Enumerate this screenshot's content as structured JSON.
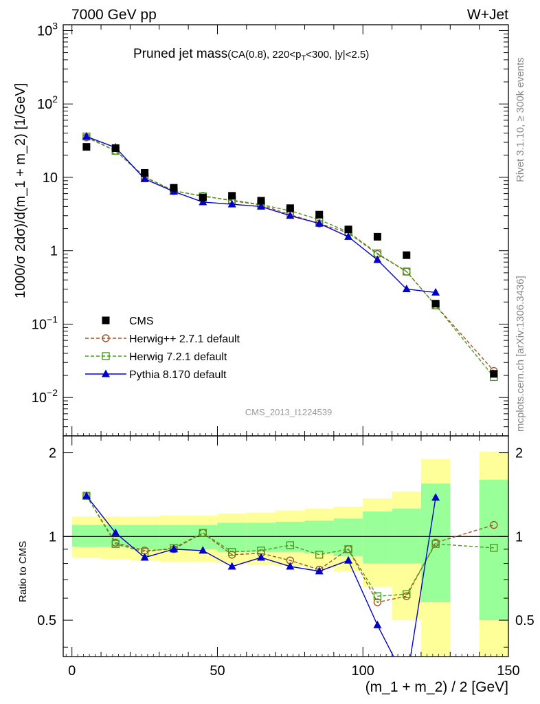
{
  "header": {
    "left": "7000 GeV pp",
    "right": "W+Jet"
  },
  "title_main": "Pruned jet mass",
  "title_sub_pre": "(CA(0.8), 220<p",
  "title_sub_subscript": "T",
  "title_sub_post": "<300, |y|<2.5)",
  "side_right_top": "Rivet 3.1.10, ≥ 300k events",
  "side_right_bottom": "mcplots.cern.ch [arXiv:1306.3436]",
  "watermark": "CMS_2013_I1224539",
  "chart_data": {
    "type": "scatter",
    "xlabel": "(m_1 + m_2) / 2 [GeV]",
    "ylabel": "1000/σ 2dσ)/d(m_1 + m_2) [1/GeV]",
    "ratio_ylabel": "Ratio to CMS",
    "xlim": [
      -3,
      150
    ],
    "ylim": [
      0.003,
      1200
    ],
    "yscale": "log",
    "ratio_ylim": [
      0.37,
      2.3
    ],
    "x_ticks": [
      0,
      50,
      100,
      150
    ],
    "y_tick_labels": [
      "10^-2",
      "10^-1",
      "1",
      "10",
      "10^2",
      "10^3"
    ],
    "ratio_tick_labels": [
      "0.5",
      "1",
      "2"
    ],
    "x": [
      5,
      15,
      25,
      35,
      45,
      55,
      65,
      75,
      85,
      95,
      105,
      115,
      125,
      145
    ],
    "bin_edges": [
      [
        0,
        10
      ],
      [
        10,
        20
      ],
      [
        20,
        30
      ],
      [
        30,
        40
      ],
      [
        40,
        50
      ],
      [
        50,
        60
      ],
      [
        60,
        70
      ],
      [
        70,
        80
      ],
      [
        80,
        90
      ],
      [
        90,
        100
      ],
      [
        100,
        110
      ],
      [
        110,
        120
      ],
      [
        120,
        130
      ],
      [
        140,
        150
      ]
    ],
    "series": [
      {
        "name": "CMS",
        "style": "data",
        "color": "#000000",
        "values": [
          26,
          25,
          11.5,
          7.2,
          5.3,
          5.6,
          4.8,
          3.8,
          3.1,
          1.95,
          1.55,
          0.87,
          0.19,
          0.021
        ]
      },
      {
        "name": "Herwig++ 2.7.1 default",
        "style": "circle-dashed",
        "color": "#a0522d",
        "values": [
          35,
          23,
          10.2,
          6.5,
          5.6,
          4.8,
          4.2,
          3.1,
          2.35,
          1.75,
          0.9,
          0.52,
          0.18,
          0.023
        ],
        "ratio": [
          1.4,
          0.95,
          0.89,
          0.9,
          1.03,
          0.86,
          0.87,
          0.82,
          0.76,
          0.9,
          0.58,
          0.61,
          0.95,
          1.1
        ]
      },
      {
        "name": "Herwig 7.2.1 default",
        "style": "square-dashed",
        "color": "#4a9a1e",
        "values": [
          36,
          23,
          10,
          6.6,
          5.5,
          4.9,
          4.25,
          3.5,
          2.65,
          1.8,
          0.92,
          0.52,
          0.18,
          0.019
        ],
        "ratio": [
          1.4,
          0.94,
          0.88,
          0.91,
          1.03,
          0.88,
          0.89,
          0.93,
          0.86,
          0.9,
          0.61,
          0.62,
          0.94,
          0.91
        ]
      },
      {
        "name": "Pythia 8.170 default",
        "style": "triangle-solid",
        "color": "#0000cc",
        "values": [
          36,
          25.5,
          9.5,
          6.4,
          4.6,
          4.3,
          4.0,
          3.0,
          2.35,
          1.55,
          0.75,
          0.3,
          0.27
        ],
        "ratio": [
          1.4,
          1.03,
          0.84,
          0.9,
          0.89,
          0.78,
          0.84,
          0.78,
          0.75,
          0.82,
          0.48,
          0.3,
          1.38
        ]
      }
    ],
    "band_inner": [
      [
        0.92,
        1.1
      ],
      [
        0.92,
        1.1
      ],
      [
        0.9,
        1.1
      ],
      [
        0.9,
        1.1
      ],
      [
        0.9,
        1.1
      ],
      [
        0.88,
        1.12
      ],
      [
        0.88,
        1.12
      ],
      [
        0.88,
        1.13
      ],
      [
        0.87,
        1.14
      ],
      [
        0.85,
        1.16
      ],
      [
        0.8,
        1.23
      ],
      [
        0.8,
        1.26
      ],
      [
        0.58,
        1.55
      ],
      [
        0.5,
        1.6
      ]
    ],
    "band_outer": [
      [
        0.84,
        1.18
      ],
      [
        0.83,
        1.18
      ],
      [
        0.82,
        1.18
      ],
      [
        0.81,
        1.19
      ],
      [
        0.81,
        1.19
      ],
      [
        0.8,
        1.21
      ],
      [
        0.79,
        1.22
      ],
      [
        0.78,
        1.24
      ],
      [
        0.77,
        1.26
      ],
      [
        0.75,
        1.28
      ],
      [
        0.66,
        1.37
      ],
      [
        0.5,
        1.45
      ],
      [
        0.3,
        1.9
      ],
      [
        0.3,
        2.02
      ]
    ],
    "legend_position": "lower-left of main panel",
    "colors": {
      "inner_band": "#99ff99",
      "outer_band": "#ffff99"
    }
  }
}
